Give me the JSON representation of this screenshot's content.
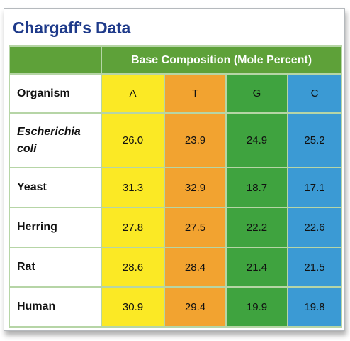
{
  "title": "Chargaff's Data",
  "subheader": "Base Composition (Mole Percent)",
  "colors": {
    "title": "#1e3a8a",
    "header_green": "#5ea139",
    "col_a": "#fbe925",
    "col_t": "#f2a330",
    "col_g": "#3fa33f",
    "col_c": "#3b9ad4"
  },
  "table": {
    "organism_label": "Organism",
    "columns": [
      "A",
      "T",
      "G",
      "C"
    ],
    "rows": [
      {
        "organism": "Escherichia coli",
        "values": [
          "26.0",
          "23.9",
          "24.9",
          "25.2"
        ]
      },
      {
        "organism": "Yeast",
        "values": [
          "31.3",
          "32.9",
          "18.7",
          "17.1"
        ]
      },
      {
        "organism": "Herring",
        "values": [
          "27.8",
          "27.5",
          "22.2",
          "22.6"
        ]
      },
      {
        "organism": "Rat",
        "values": [
          "28.6",
          "28.4",
          "21.4",
          "21.5"
        ]
      },
      {
        "organism": "Human",
        "values": [
          "30.9",
          "29.4",
          "19.9",
          "19.8"
        ]
      }
    ]
  }
}
